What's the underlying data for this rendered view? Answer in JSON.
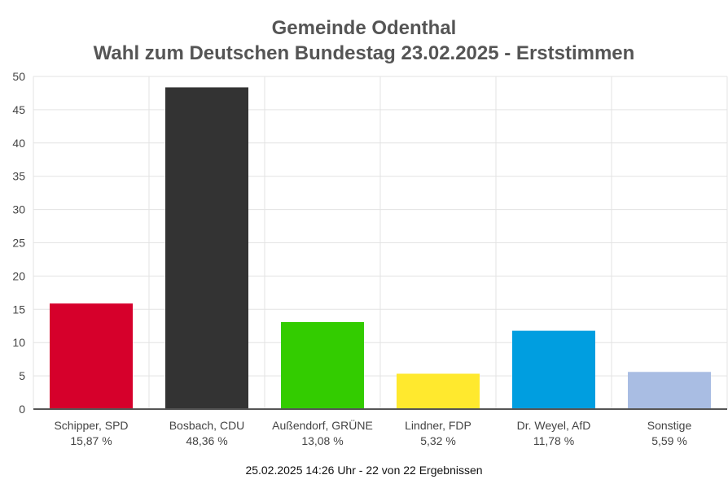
{
  "header": {
    "title": "Gemeinde Odenthal",
    "subtitle": "Wahl zum Deutschen Bundestag 23.02.2025  - Erststimmen"
  },
  "chart_data": {
    "type": "bar",
    "title": "Gemeinde Odenthal",
    "subtitle": "Wahl zum Deutschen Bundestag 23.02.2025  - Erststimmen",
    "xlabel": "",
    "ylabel": "",
    "ylim": [
      0,
      50
    ],
    "yticks": [
      0,
      5,
      10,
      15,
      20,
      25,
      30,
      35,
      40,
      45,
      50
    ],
    "grid": true,
    "legend": "none",
    "categories": [
      "Schipper, SPD",
      "Bosbach, CDU",
      "Außendorf, GRÜNE",
      "Lindner, FDP",
      "Dr. Weyel, AfD",
      "Sonstige"
    ],
    "values": [
      15.87,
      48.36,
      13.08,
      5.32,
      11.78,
      5.59
    ],
    "value_labels": [
      "15,87 %",
      "48,36 %",
      "13,08 %",
      "5,32 %",
      "11,78 %",
      "5,59 %"
    ],
    "colors": [
      "#d6002b",
      "#333333",
      "#33cc00",
      "#ffe92e",
      "#009ee0",
      "#a9bde3"
    ]
  },
  "footer": {
    "text": "25.02.2025 14:26 Uhr - 22 von 22 Ergebnissen"
  }
}
